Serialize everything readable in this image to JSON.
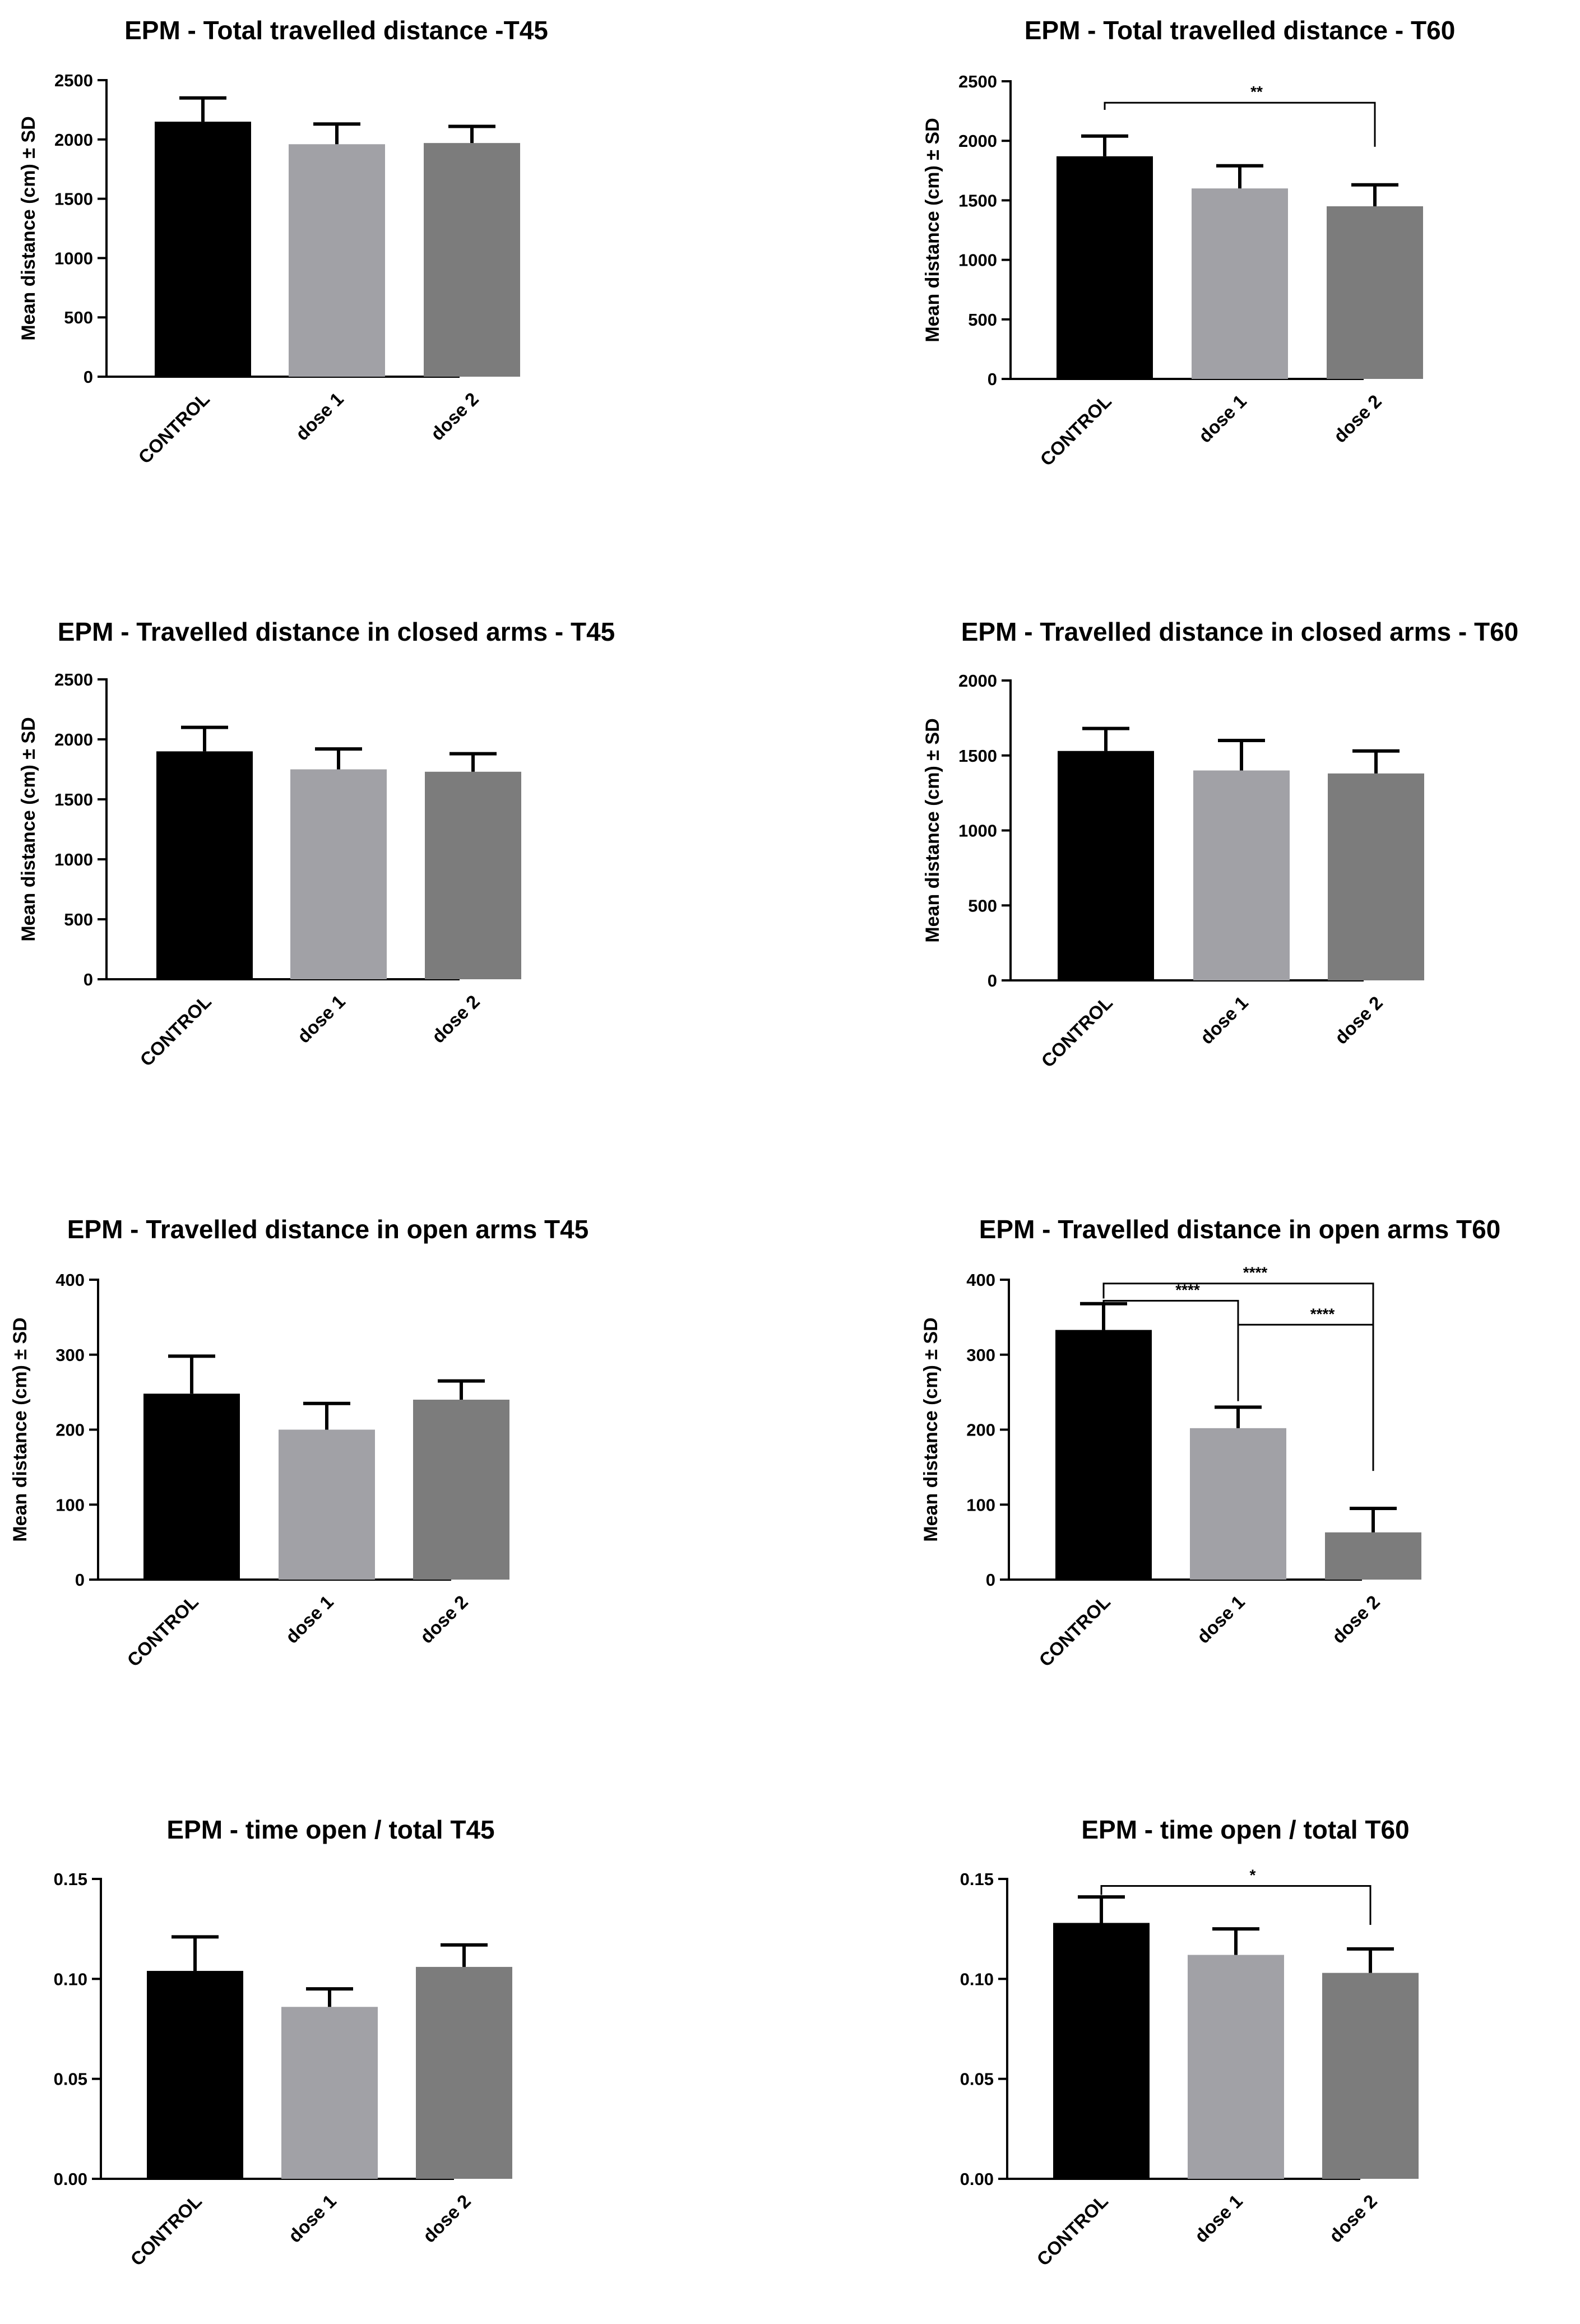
{
  "colors": {
    "CONTROL": "#000000",
    "dose 1": "#a1a1a6",
    "dose 2": "#7c7c7c",
    "axis": "#000000"
  },
  "chart_data": [
    {
      "type": "bar",
      "title": "EPM - Total travelled distance -T45",
      "ylabel": "Mean distance (cm) ± SD",
      "categories": [
        "CONTROL",
        "dose 1",
        "dose 2"
      ],
      "values": [
        2150,
        1960,
        1970
      ],
      "errors": [
        200,
        170,
        140
      ],
      "ylim": [
        0,
        2500
      ],
      "yticks": [
        0,
        500,
        1000,
        1500,
        2000,
        2500
      ],
      "ytick_labels": [
        "0",
        "500",
        "1000",
        "1500",
        "2000",
        "2500"
      ],
      "significance": []
    },
    {
      "type": "bar",
      "title": "EPM - Total travelled distance - T60",
      "ylabel": "Mean distance (cm) ± SD",
      "categories": [
        "CONTROL",
        "dose 1",
        "dose 2"
      ],
      "values": [
        1870,
        1600,
        1450
      ],
      "errors": [
        170,
        190,
        180
      ],
      "ylim": [
        0,
        2500
      ],
      "yticks": [
        0,
        500,
        1000,
        1500,
        2000,
        2500
      ],
      "ytick_labels": [
        "0",
        "500",
        "1000",
        "1500",
        "2000",
        "2500"
      ],
      "significance": [
        {
          "from": 0,
          "to": 2,
          "level": 2320,
          "left_end": 2260,
          "right_end": 1950,
          "label": "**"
        }
      ]
    },
    {
      "type": "bar",
      "title": "EPM - Travelled distance in closed arms - T45",
      "ylabel": "Mean distance (cm) ± SD",
      "categories": [
        "CONTROL",
        "dose 1",
        "dose 2"
      ],
      "values": [
        1900,
        1750,
        1730
      ],
      "errors": [
        200,
        170,
        150
      ],
      "ylim": [
        0,
        2500
      ],
      "yticks": [
        0,
        500,
        1000,
        1500,
        2000,
        2500
      ],
      "ytick_labels": [
        "0",
        "500",
        "1000",
        "1500",
        "2000",
        "2500"
      ],
      "significance": []
    },
    {
      "type": "bar",
      "title": "EPM - Travelled distance in closed arms - T60",
      "ylabel": "Mean distance (cm) ± SD",
      "categories": [
        "CONTROL",
        "dose 1",
        "dose 2"
      ],
      "values": [
        1530,
        1400,
        1380
      ],
      "errors": [
        150,
        200,
        150
      ],
      "ylim": [
        0,
        2000
      ],
      "yticks": [
        0,
        500,
        1000,
        1500,
        2000
      ],
      "ytick_labels": [
        "0",
        "500",
        "1000",
        "1500",
        "2000"
      ],
      "significance": []
    },
    {
      "type": "bar",
      "title": "EPM - Travelled distance in open arms T45",
      "ylabel": "Mean distance (cm) ± SD",
      "categories": [
        "CONTROL",
        "dose 1",
        "dose 2"
      ],
      "values": [
        248,
        200,
        240
      ],
      "errors": [
        50,
        35,
        25
      ],
      "ylim": [
        0,
        400
      ],
      "yticks": [
        0,
        100,
        200,
        300,
        400
      ],
      "ytick_labels": [
        "0",
        "100",
        "200",
        "300",
        "400"
      ],
      "significance": []
    },
    {
      "type": "bar",
      "title": "EPM - Travelled distance in open arms T60",
      "ylabel": "Mean distance (cm) ± SD",
      "categories": [
        "CONTROL",
        "dose 1",
        "dose 2"
      ],
      "values": [
        333,
        202,
        63
      ],
      "errors": [
        35,
        28,
        32
      ],
      "ylim": [
        0,
        400
      ],
      "yticks": [
        0,
        100,
        200,
        300,
        400
      ],
      "ytick_labels": [
        "0",
        "100",
        "200",
        "300",
        "400"
      ],
      "significance": [
        {
          "from": 0,
          "to": 2,
          "level": 395,
          "left_end": 375,
          "right_end": 145,
          "label": "****"
        },
        {
          "from": 0,
          "to": 1,
          "level": 372,
          "left_end": 362,
          "right_end": 238,
          "label": "****"
        },
        {
          "from": 1,
          "to": 2,
          "level": 340,
          "left_end": 245,
          "right_end": 318,
          "label": "****"
        }
      ]
    },
    {
      "type": "bar",
      "title": "EPM - time open / total T45",
      "ylabel": "",
      "categories": [
        "CONTROL",
        "dose 1",
        "dose 2"
      ],
      "values": [
        0.104,
        0.086,
        0.106
      ],
      "errors": [
        0.017,
        0.009,
        0.011
      ],
      "ylim": [
        0,
        0.15
      ],
      "yticks": [
        0,
        0.05,
        0.1,
        0.15
      ],
      "ytick_labels": [
        "0.00",
        "0.05",
        "0.10",
        "0.15"
      ],
      "significance": []
    },
    {
      "type": "bar",
      "title": "EPM - time open / total T60",
      "ylabel": "",
      "categories": [
        "CONTROL",
        "dose 1",
        "dose 2"
      ],
      "values": [
        0.128,
        0.112,
        0.103
      ],
      "errors": [
        0.013,
        0.013,
        0.012
      ],
      "ylim": [
        0,
        0.15
      ],
      "yticks": [
        0,
        0.05,
        0.1,
        0.15
      ],
      "ytick_labels": [
        "0.00",
        "0.05",
        "0.10",
        "0.15"
      ],
      "significance": [
        {
          "from": 0,
          "to": 2,
          "level": 0.1465,
          "left_end": 0.142,
          "right_end": 0.127,
          "label": "*"
        }
      ]
    }
  ]
}
